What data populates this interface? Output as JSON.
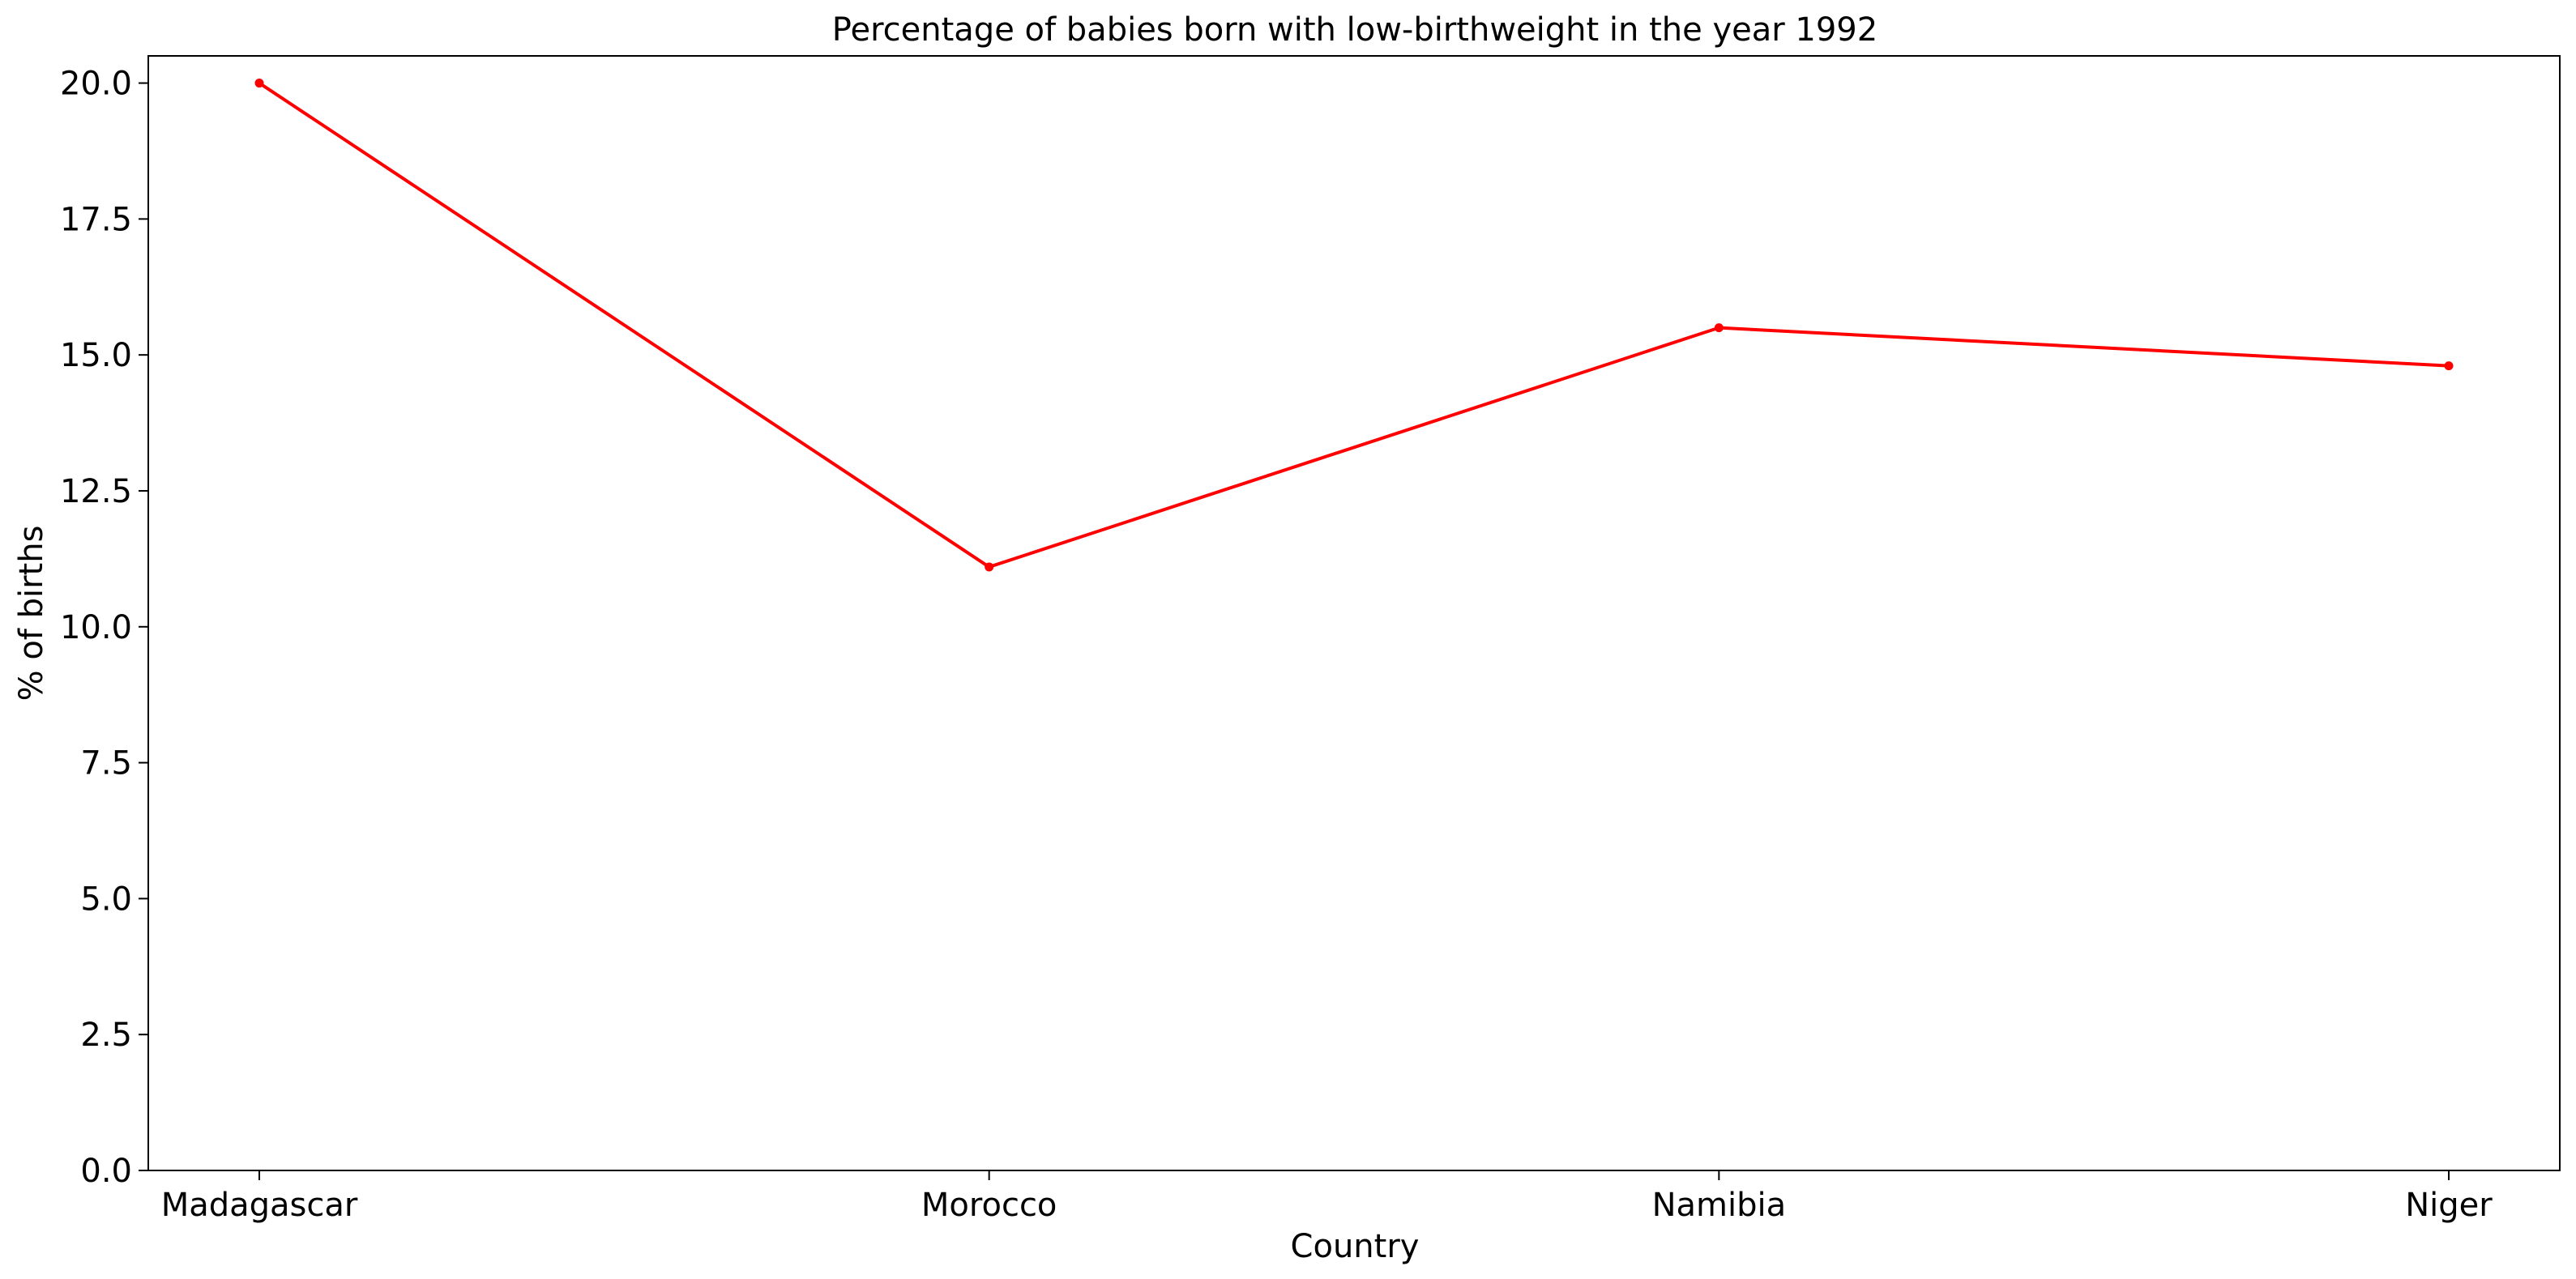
{
  "chart_data": {
    "type": "line",
    "title": "Percentage of babies born with low-birthweight in the year 1992",
    "xlabel": "Country",
    "ylabel": "% of births",
    "categories": [
      "Madagascar",
      "Morocco",
      "Namibia",
      "Niger"
    ],
    "series": [
      {
        "values": [
          20.0,
          11.1,
          15.5,
          14.8
        ],
        "color": "#ff0000"
      }
    ],
    "ylim": [
      0,
      20.5
    ],
    "yticks": [
      0.0,
      2.5,
      5.0,
      7.5,
      10.0,
      12.5,
      15.0,
      17.5,
      20.0
    ],
    "ytick_labels": [
      "0.0",
      "2.5",
      "5.0",
      "7.5",
      "10.0",
      "12.5",
      "15.0",
      "17.5",
      "20.0"
    ],
    "grid": false,
    "legend": "none",
    "marker": "dot"
  }
}
